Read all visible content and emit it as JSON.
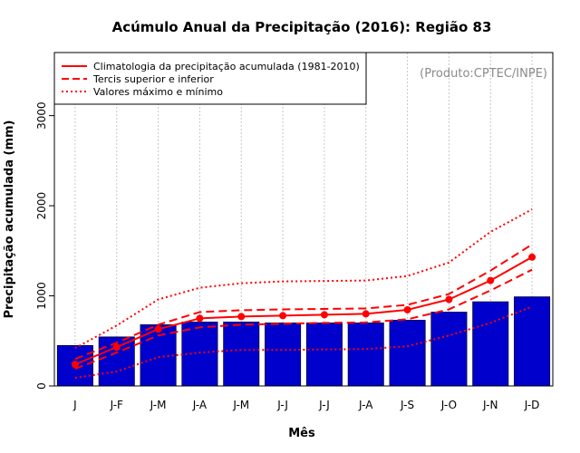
{
  "chart_data": {
    "type": "bar",
    "title": "Acúmulo Anual da Precipitação (2016): Região 83",
    "xlabel": "Mês",
    "ylabel": "Precipitação acumulada (mm)",
    "source_note": "(Produto:CPTEC/INPE)",
    "ylim": [
      0,
      3700
    ],
    "yticks": [
      0,
      1000,
      2000,
      3000
    ],
    "ytick_labels": [
      "0",
      "1000",
      "2000",
      "3000"
    ],
    "categories": [
      "J",
      "J-F",
      "J-M",
      "J-A",
      "J-M",
      "J-J",
      "J-J",
      "J-A",
      "J-S",
      "J-O",
      "J-N",
      "J-D"
    ],
    "grid": "vertical dotted",
    "legend_position": "top-left",
    "legend": [
      {
        "label": "Climatologia da precipitação acumulada (1981-2010)",
        "style": "solid"
      },
      {
        "label": "Tercis superior e inferior",
        "style": "dashed"
      },
      {
        "label": "Valores máximo e mínimo",
        "style": "dotted"
      }
    ],
    "series": [
      {
        "name": "Precipitação acumulada 2016",
        "kind": "bar",
        "color": "#0000cc",
        "values": [
          450,
          545,
          680,
          710,
          710,
          700,
          700,
          700,
          730,
          820,
          935,
          990
        ]
      },
      {
        "name": "Climatologia da precipitação acumulada (1981-2010)",
        "kind": "line-markers",
        "color": "#ff0000",
        "values": [
          240,
          430,
          630,
          750,
          770,
          780,
          790,
          800,
          845,
          960,
          1170,
          1430
        ]
      },
      {
        "name": "Tercil superior",
        "kind": "dashed",
        "color": "#ff0000",
        "values": [
          300,
          480,
          680,
          820,
          840,
          850,
          855,
          860,
          900,
          1020,
          1280,
          1570
        ]
      },
      {
        "name": "Tercil inferior",
        "kind": "dashed",
        "color": "#ff0000",
        "values": [
          190,
          370,
          560,
          650,
          680,
          690,
          700,
          705,
          740,
          850,
          1060,
          1290
        ]
      },
      {
        "name": "Valor máximo",
        "kind": "dotted",
        "color": "#ff0000",
        "values": [
          420,
          670,
          960,
          1090,
          1140,
          1160,
          1165,
          1170,
          1220,
          1370,
          1710,
          1960
        ]
      },
      {
        "name": "Valor mínimo",
        "kind": "dotted",
        "color": "#ff0000",
        "values": [
          90,
          160,
          320,
          370,
          400,
          400,
          405,
          410,
          440,
          560,
          700,
          880
        ]
      }
    ]
  }
}
